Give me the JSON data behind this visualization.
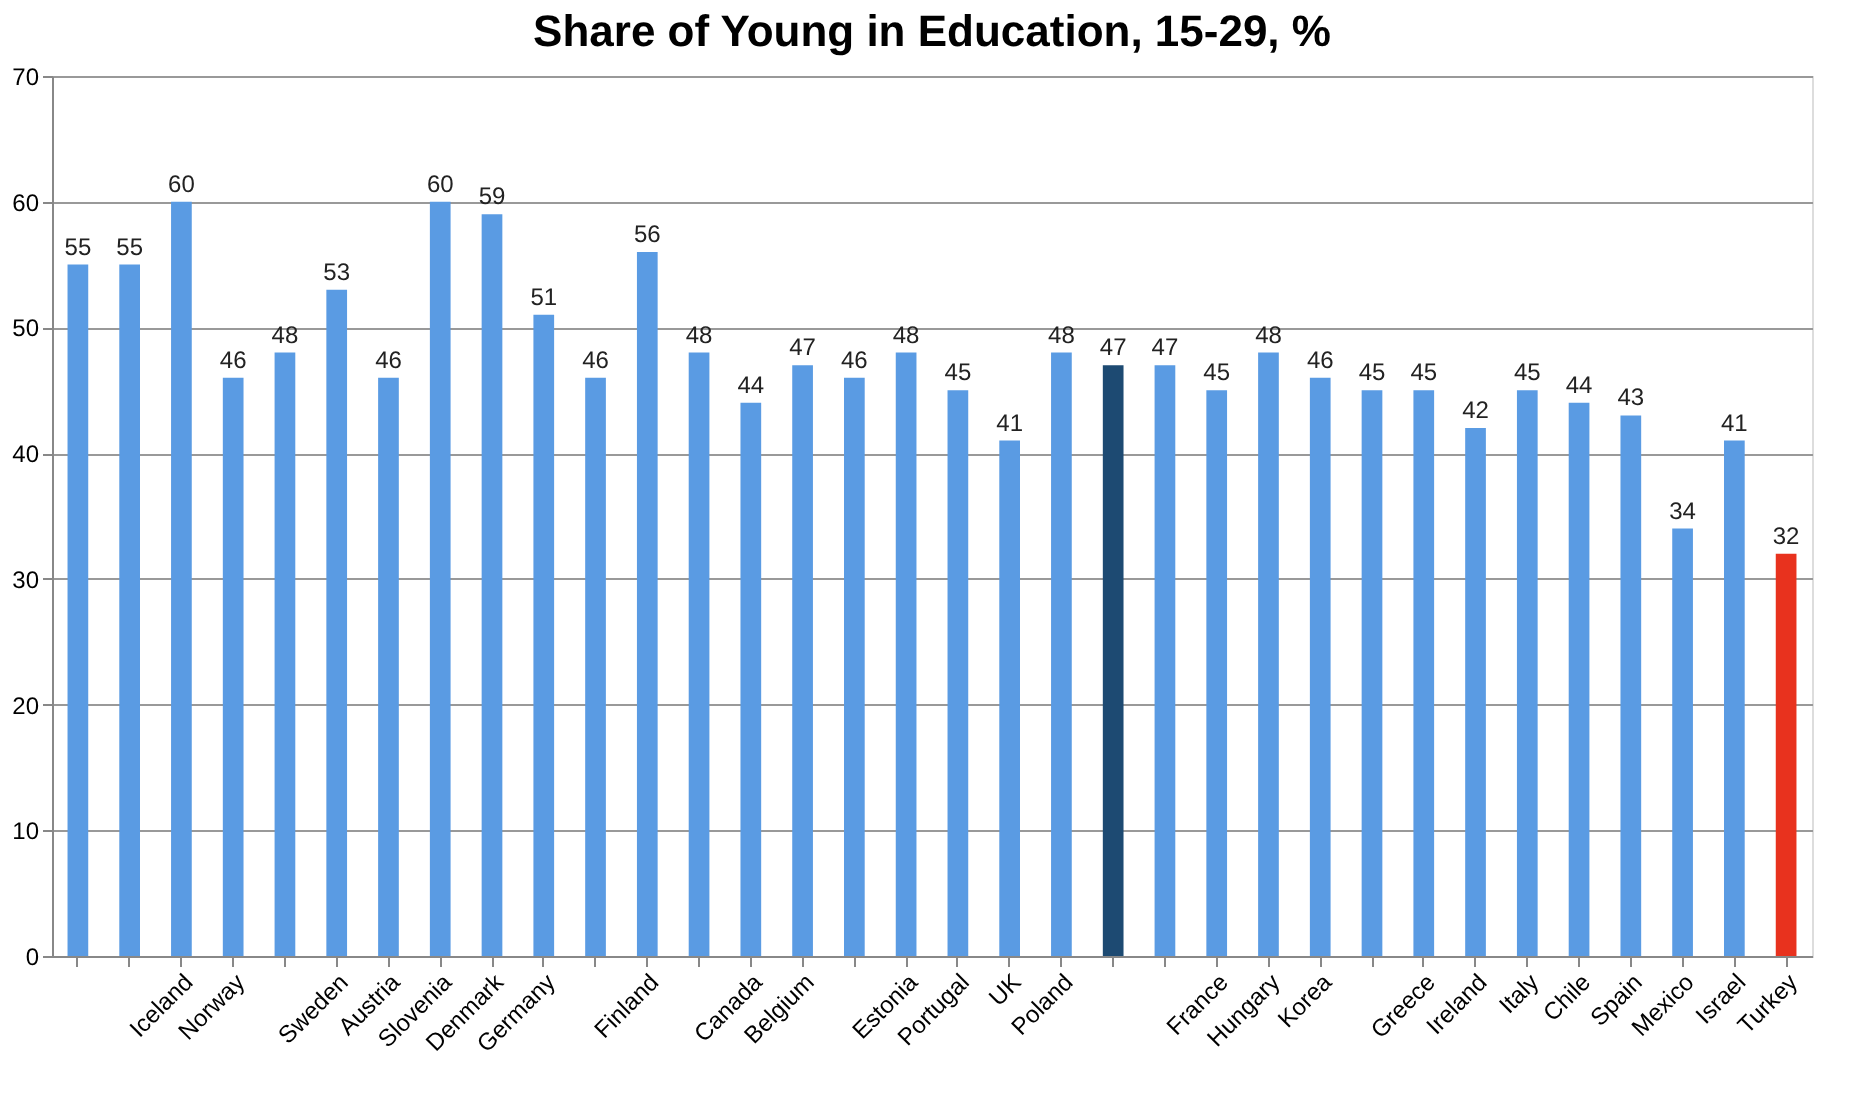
{
  "chart_data": {
    "type": "bar",
    "title": "Share of Young in Education, 15-29, %",
    "categories": [
      null,
      null,
      "Iceland",
      "Norway",
      null,
      "Sweden",
      "Austria",
      "Slovenia",
      "Denmark",
      "Germany",
      null,
      "Finland",
      null,
      "Canada",
      "Belgium",
      null,
      "Estonia",
      "Portugal",
      "UK",
      "Poland",
      null,
      null,
      "France",
      "Hungary",
      "Korea",
      null,
      "Greece",
      "Ireland",
      "Italy",
      "Chile",
      "Spain",
      "Mexico",
      "Israel",
      "Turkey"
    ],
    "values": [
      55,
      55,
      60,
      46,
      48,
      53,
      46,
      60,
      59,
      51,
      46,
      56,
      48,
      44,
      47,
      46,
      48,
      45,
      41,
      48,
      47,
      47,
      45,
      48,
      46,
      45,
      45,
      42,
      45,
      44,
      43,
      34,
      41,
      32
    ],
    "colors": [
      "#5a9be3",
      "#5a9be3",
      "#5a9be3",
      "#5a9be3",
      "#5a9be3",
      "#5a9be3",
      "#5a9be3",
      "#5a9be3",
      "#5a9be3",
      "#5a9be3",
      "#5a9be3",
      "#5a9be3",
      "#5a9be3",
      "#5a9be3",
      "#5a9be3",
      "#5a9be3",
      "#5a9be3",
      "#5a9be3",
      "#5a9be3",
      "#5a9be3",
      "#1d4a72",
      "#5a9be3",
      "#5a9be3",
      "#5a9be3",
      "#5a9be3",
      "#5a9be3",
      "#5a9be3",
      "#5a9be3",
      "#5a9be3",
      "#5a9be3",
      "#5a9be3",
      "#5a9be3",
      "#5a9be3",
      "#e8321e"
    ],
    "ylim": [
      0,
      70
    ],
    "yticks": [
      0,
      10,
      20,
      30,
      40,
      50,
      60,
      70
    ],
    "grid": "y",
    "data_labels": true
  }
}
